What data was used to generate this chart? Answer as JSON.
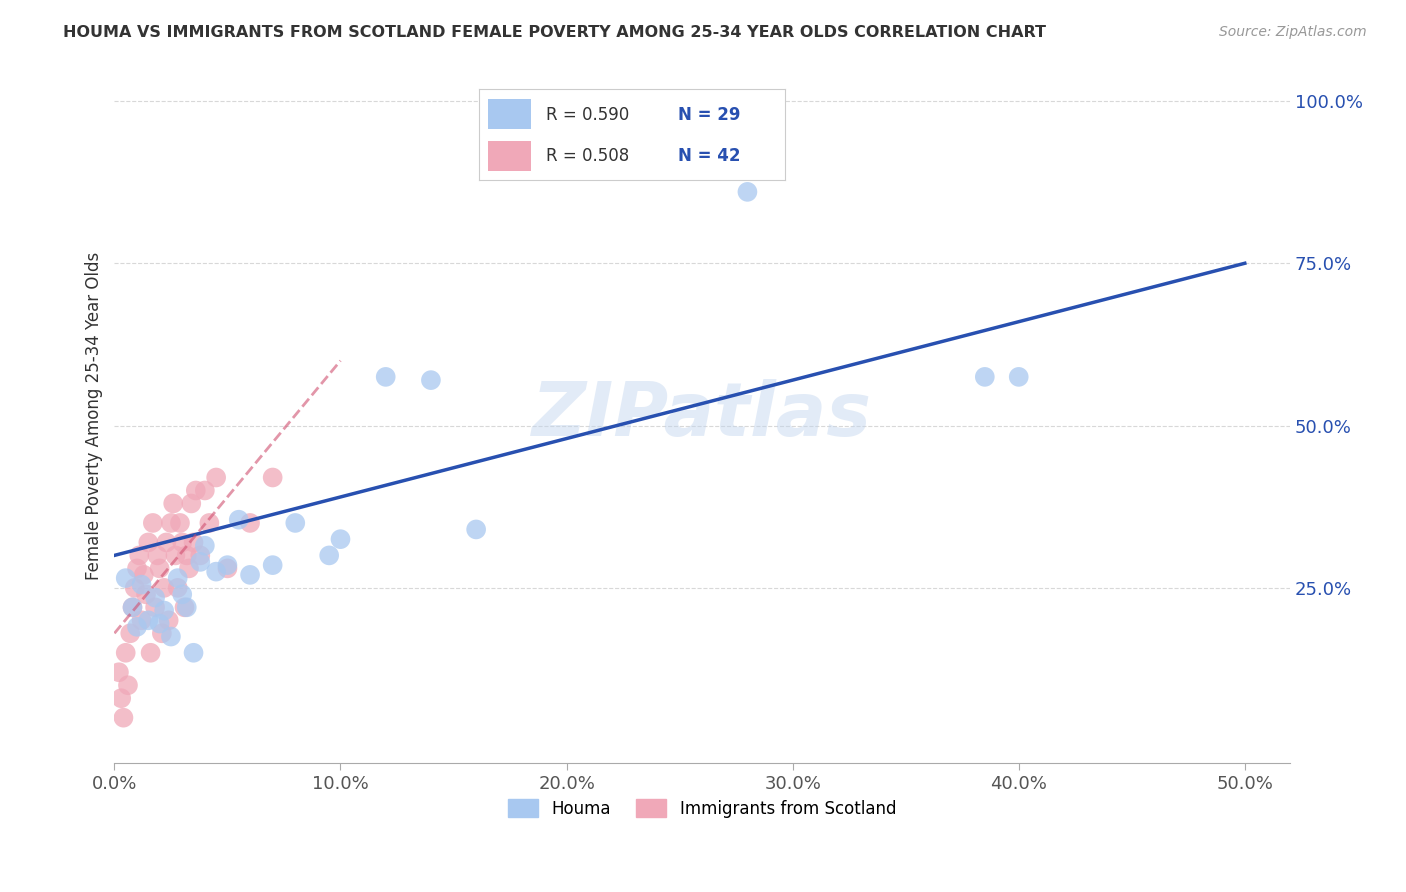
{
  "title": "HOUMA VS IMMIGRANTS FROM SCOTLAND FEMALE POVERTY AMONG 25-34 YEAR OLDS CORRELATION CHART",
  "source": "Source: ZipAtlas.com",
  "ylabel": "Female Poverty Among 25-34 Year Olds",
  "x_ticklabels": [
    "0.0%",
    "10.0%",
    "20.0%",
    "30.0%",
    "40.0%",
    "50.0%"
  ],
  "x_ticks": [
    0.0,
    0.1,
    0.2,
    0.3,
    0.4,
    0.5
  ],
  "y_ticklabels_right": [
    "100.0%",
    "75.0%",
    "50.0%",
    "25.0%"
  ],
  "y_ticks_right": [
    1.0,
    0.75,
    0.5,
    0.25
  ],
  "xlim": [
    0.0,
    0.52
  ],
  "ylim": [
    -0.02,
    1.05
  ],
  "legend_blue_r": "R = 0.590",
  "legend_blue_n": "N = 29",
  "legend_pink_r": "R = 0.508",
  "legend_pink_n": "N = 42",
  "legend_label_blue": "Houma",
  "legend_label_pink": "Immigrants from Scotland",
  "watermark": "ZIPatlas",
  "blue_color": "#a8c8f0",
  "pink_color": "#f0a8b8",
  "blue_line_color": "#2850b0",
  "pink_line_color": "#d05070",
  "r_n_color": "#2850b0",
  "houma_x": [
    0.005,
    0.008,
    0.01,
    0.012,
    0.015,
    0.018,
    0.02,
    0.022,
    0.025,
    0.028,
    0.03,
    0.032,
    0.035,
    0.038,
    0.04,
    0.045,
    0.05,
    0.055,
    0.06,
    0.07,
    0.08,
    0.095,
    0.1,
    0.12,
    0.14,
    0.16,
    0.28,
    0.385,
    0.4
  ],
  "houma_y": [
    0.265,
    0.22,
    0.19,
    0.255,
    0.2,
    0.235,
    0.195,
    0.215,
    0.175,
    0.265,
    0.24,
    0.22,
    0.15,
    0.29,
    0.315,
    0.275,
    0.285,
    0.355,
    0.27,
    0.285,
    0.35,
    0.3,
    0.325,
    0.575,
    0.57,
    0.34,
    0.86,
    0.575,
    0.575
  ],
  "scotland_x": [
    0.002,
    0.003,
    0.004,
    0.005,
    0.006,
    0.007,
    0.008,
    0.009,
    0.01,
    0.011,
    0.012,
    0.013,
    0.014,
    0.015,
    0.016,
    0.017,
    0.018,
    0.019,
    0.02,
    0.021,
    0.022,
    0.023,
    0.024,
    0.025,
    0.026,
    0.027,
    0.028,
    0.029,
    0.03,
    0.031,
    0.032,
    0.033,
    0.034,
    0.035,
    0.036,
    0.038,
    0.04,
    0.042,
    0.045,
    0.05,
    0.06,
    0.07
  ],
  "scotland_y": [
    0.12,
    0.08,
    0.05,
    0.15,
    0.1,
    0.18,
    0.22,
    0.25,
    0.28,
    0.3,
    0.2,
    0.27,
    0.24,
    0.32,
    0.15,
    0.35,
    0.22,
    0.3,
    0.28,
    0.18,
    0.25,
    0.32,
    0.2,
    0.35,
    0.38,
    0.3,
    0.25,
    0.35,
    0.32,
    0.22,
    0.3,
    0.28,
    0.38,
    0.32,
    0.4,
    0.3,
    0.4,
    0.35,
    0.42,
    0.28,
    0.35,
    0.42
  ],
  "blue_line_x0": 0.0,
  "blue_line_y0": 0.3,
  "blue_line_x1": 0.5,
  "blue_line_y1": 0.75,
  "pink_line_x0": 0.0,
  "pink_line_y0": 0.18,
  "pink_line_x1": 0.1,
  "pink_line_y1": 0.6,
  "grid_color": "#d8d8d8",
  "tick_color": "#2850b0",
  "bottom_tick_color": "#555555"
}
